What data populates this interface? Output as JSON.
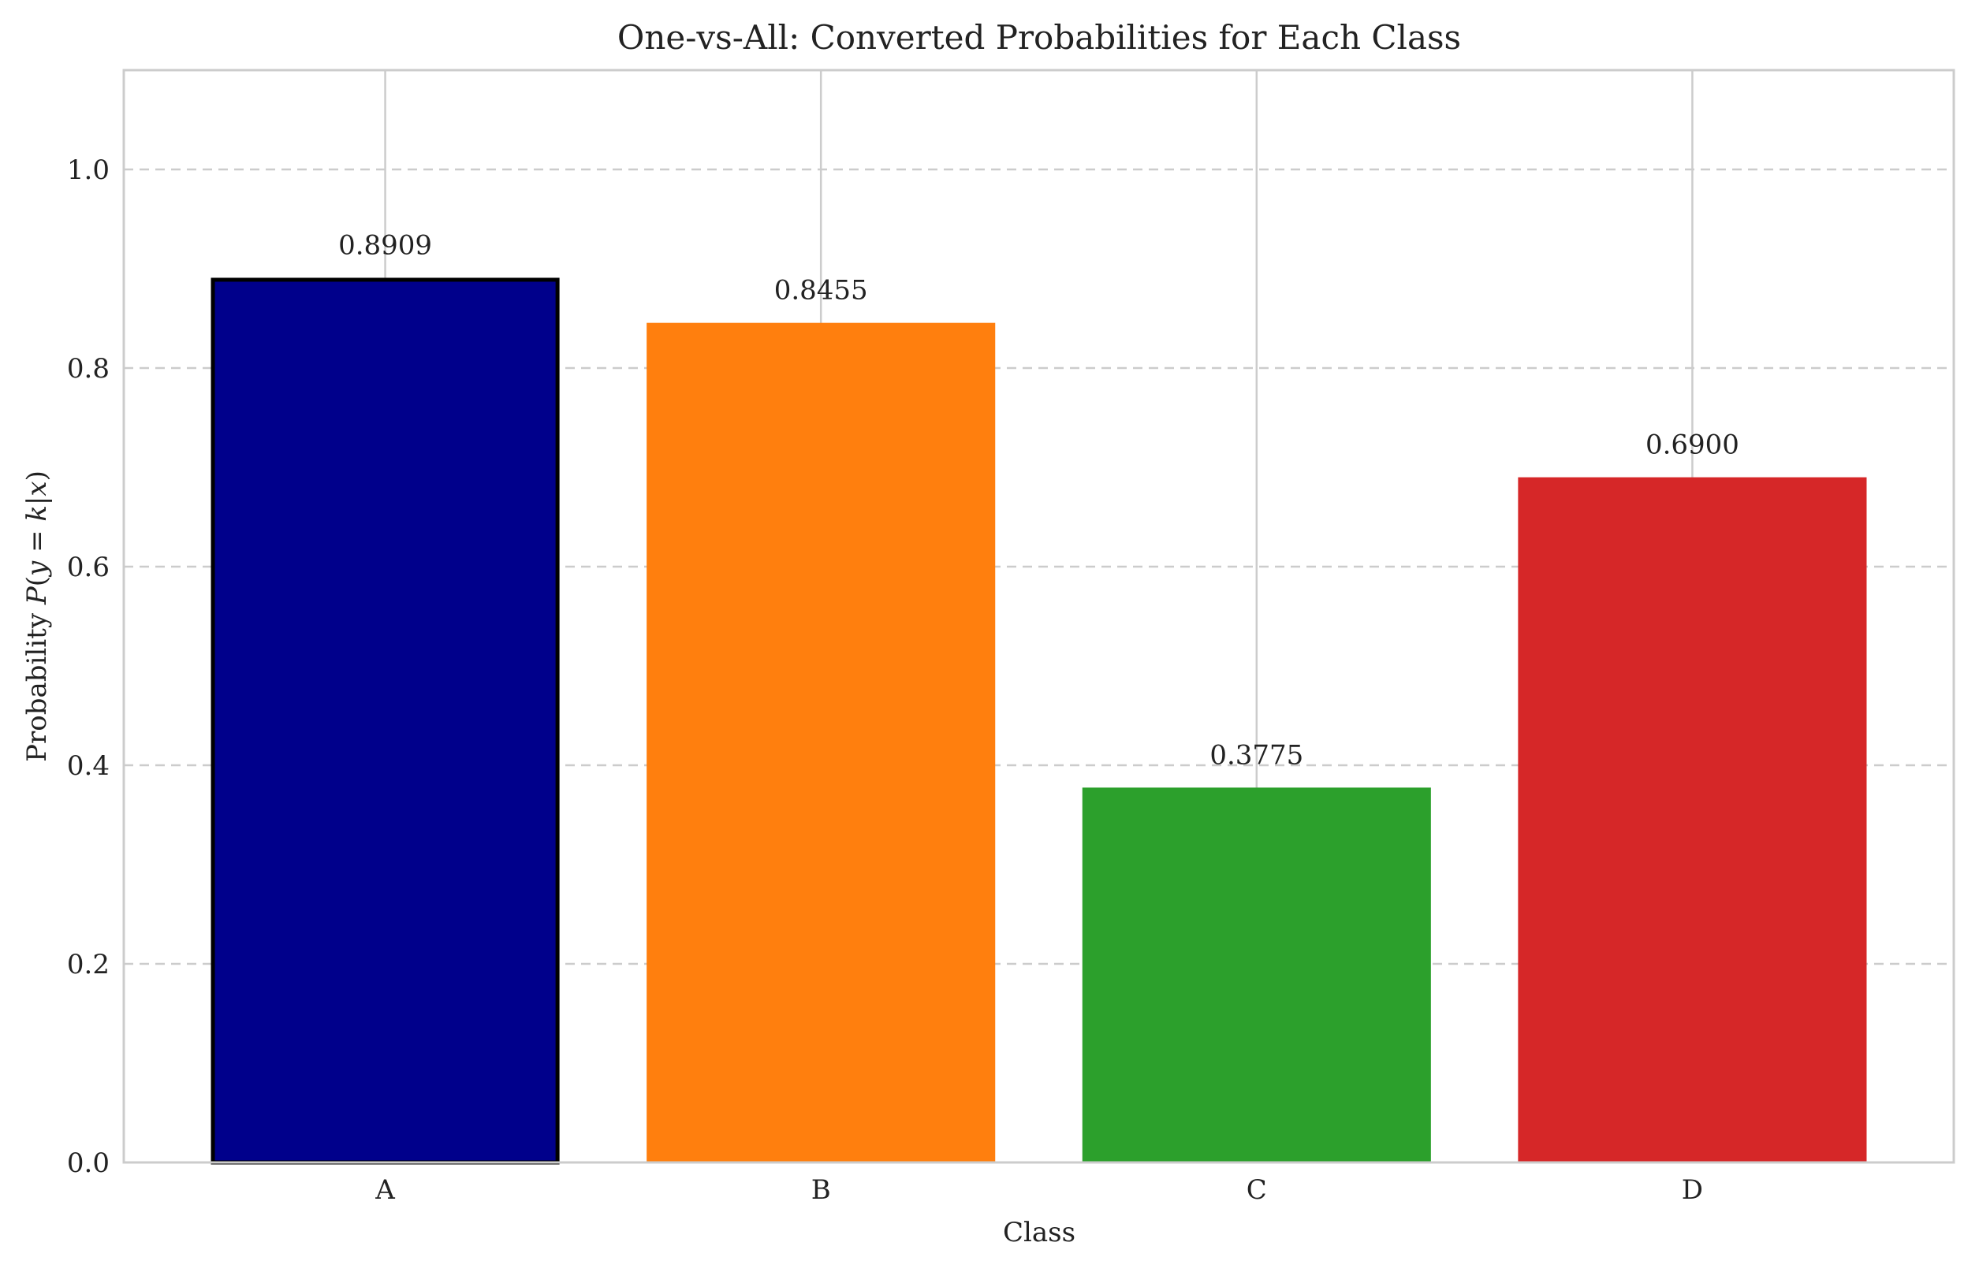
{
  "chart_data": {
    "type": "bar",
    "title": "One-vs-All: Converted Probabilities for Each Class",
    "xlabel": "Class",
    "ylabel": {
      "prefix": "Probability ",
      "math": [
        {
          "text": "P",
          "italic": true
        },
        {
          "text": "(",
          "italic": false
        },
        {
          "text": "y",
          "italic": true
        },
        {
          "text": " = ",
          "italic": false
        },
        {
          "text": "k",
          "italic": true
        },
        {
          "text": "|",
          "italic": false
        },
        {
          "text": "x",
          "italic": true
        },
        {
          "text": ")",
          "italic": false
        }
      ]
    },
    "categories": [
      "A",
      "B",
      "C",
      "D"
    ],
    "values": [
      0.8909,
      0.8455,
      0.3775,
      0.69
    ],
    "data_labels": [
      "0.8909",
      "0.8455",
      "0.3775",
      "0.6900"
    ],
    "colors": [
      "#00008b",
      "#ff7f0e",
      "#2ca02c",
      "#d62728"
    ],
    "highlighted_index": 0,
    "highlight_edge_color": "#000000",
    "ylim": [
      0,
      1.1
    ],
    "yticks": [
      0.0,
      0.2,
      0.4,
      0.6,
      0.8,
      1.0
    ],
    "ytick_labels": [
      "0.0",
      "0.2",
      "0.4",
      "0.6",
      "0.8",
      "1.0"
    ],
    "grid": {
      "y": "dashed",
      "x": "solid",
      "color": "#cccccc"
    },
    "legend": "none"
  }
}
